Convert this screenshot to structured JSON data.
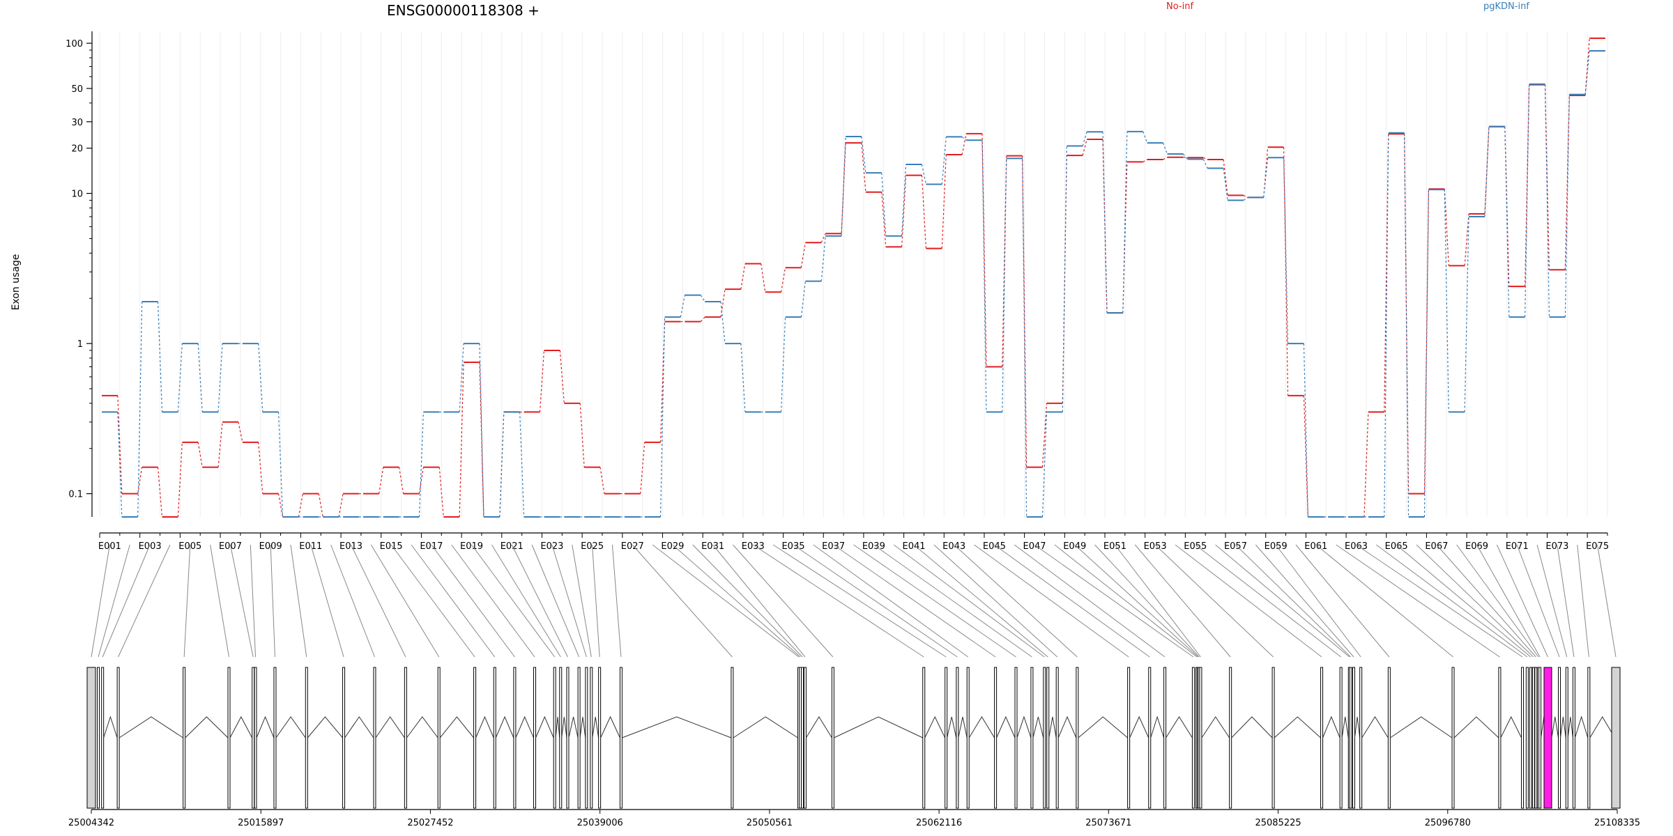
{
  "chart_data": {
    "type": "line",
    "title": "ENSG00000118308 +",
    "ylabel": "Exon usage",
    "yscale": "log",
    "ylim": [
      0.07,
      120
    ],
    "yticks": [
      0.1,
      1,
      10,
      20,
      30,
      50,
      100
    ],
    "series": [
      {
        "name": "No-inf",
        "color": "#e41a1c",
        "values": [
          0.45,
          0.1,
          0.15,
          0.07,
          0.22,
          0.15,
          0.3,
          0.22,
          0.1,
          0.07,
          0.1,
          0.07,
          0.1,
          0.1,
          0.15,
          0.1,
          0.15,
          0.07,
          0.75,
          0.07,
          0.35,
          0.35,
          0.9,
          0.4,
          0.15,
          0.1,
          0.1,
          0.22,
          1.4,
          1.4,
          1.5,
          2.3,
          3.4,
          2.2,
          3.2,
          4.7,
          5.4,
          21.7,
          10.2,
          4.4,
          13.2,
          4.3,
          18.1,
          25.0,
          0.7,
          17.8,
          0.15,
          0.4,
          17.9,
          22.9,
          1.6,
          16.2,
          16.8,
          17.4,
          17.3,
          16.8,
          9.7,
          9.4,
          20.3,
          0.45,
          0.07,
          0.07,
          0.07,
          0.35,
          24.9,
          0.1,
          10.7,
          3.3,
          7.3,
          27.8,
          2.4,
          52.9,
          3.1,
          44.9,
          108.0
        ]
      },
      {
        "name": "pgKDN-inf",
        "color": "#377eb8",
        "values": [
          0.35,
          0.07,
          1.9,
          0.35,
          1.0,
          0.35,
          1.0,
          1.0,
          0.35,
          0.07,
          0.07,
          0.07,
          0.07,
          0.07,
          0.07,
          0.07,
          0.35,
          0.35,
          1.0,
          0.07,
          0.35,
          0.07,
          0.07,
          0.07,
          0.07,
          0.07,
          0.07,
          0.07,
          1.5,
          2.1,
          1.9,
          1.0,
          0.35,
          0.35,
          1.5,
          2.6,
          5.2,
          23.9,
          13.7,
          5.2,
          15.6,
          11.5,
          23.8,
          22.6,
          0.35,
          17.1,
          0.07,
          0.35,
          20.7,
          25.7,
          1.6,
          25.8,
          21.7,
          18.3,
          16.9,
          14.7,
          9.0,
          9.4,
          17.3,
          1.0,
          0.07,
          0.07,
          0.07,
          0.07,
          25.3,
          0.07,
          10.6,
          0.35,
          7.0,
          27.9,
          1.5,
          53.4,
          1.5,
          45.6,
          89.0
        ]
      }
    ],
    "exon_tick_labels": [
      "E001",
      "E003",
      "E005",
      "E007",
      "E009",
      "E011",
      "E013",
      "E015",
      "E017",
      "E019",
      "E021",
      "E023",
      "E025",
      "E027",
      "E029",
      "E031",
      "E033",
      "E035",
      "E037",
      "E039",
      "E041",
      "E043",
      "E045",
      "E047",
      "E049",
      "E051",
      "E053",
      "E055",
      "E057",
      "E059",
      "E061",
      "E063",
      "E065",
      "E067",
      "E069",
      "E071",
      "E073",
      "E075"
    ],
    "genomic_coordinate_labels": [
      "25004342",
      "25015897",
      "25027452",
      "25039006",
      "25050561",
      "25062116",
      "25073671",
      "25085225",
      "25096780",
      "25108335"
    ],
    "highlighted_exon": "E070",
    "highlight_color": "#ff1ee6",
    "grid": true
  }
}
